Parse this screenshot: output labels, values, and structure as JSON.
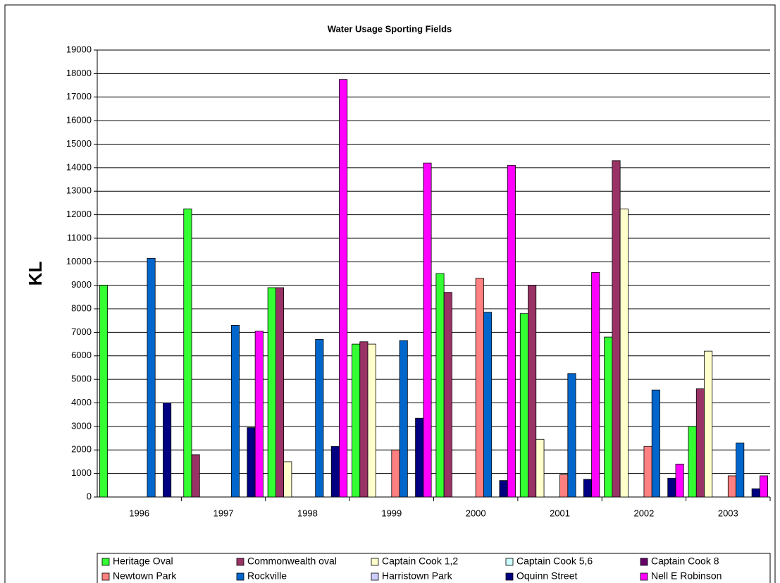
{
  "chart_data": {
    "type": "bar",
    "title": "Water Usage Sporting Fields",
    "y_label": "KL",
    "categories": [
      "1996",
      "1997",
      "1998",
      "1999",
      "2000",
      "2001",
      "2002",
      "2003"
    ],
    "series": [
      {
        "name": "Heritage Oval",
        "color": "#33ff33",
        "values": [
          9000,
          12250,
          8900,
          6500,
          9500,
          7800,
          6800,
          3000
        ]
      },
      {
        "name": "Commonwealth oval",
        "color": "#993366",
        "values": [
          0,
          1800,
          8900,
          6600,
          8700,
          9000,
          14300,
          4600
        ]
      },
      {
        "name": "Captain Cook 1,2",
        "color": "#ffffcc",
        "values": [
          0,
          0,
          1500,
          6500,
          0,
          2450,
          12250,
          6200
        ]
      },
      {
        "name": "Captain Cook 5,6",
        "color": "#ccffff",
        "values": [
          0,
          0,
          0,
          0,
          0,
          0,
          0,
          0
        ]
      },
      {
        "name": "Captain Cook 8",
        "color": "#660066",
        "values": [
          0,
          0,
          0,
          0,
          0,
          0,
          0,
          0
        ]
      },
      {
        "name": "Newtown Park",
        "color": "#ff8080",
        "values": [
          0,
          0,
          0,
          2000,
          9300,
          950,
          2150,
          900
        ]
      },
      {
        "name": "Rockville",
        "color": "#0066cc",
        "values": [
          10150,
          7300,
          6700,
          6650,
          7850,
          5250,
          4550,
          2300
        ]
      },
      {
        "name": "Harristown Park",
        "color": "#ccccff",
        "values": [
          0,
          0,
          0,
          0,
          0,
          0,
          0,
          0
        ]
      },
      {
        "name": "Oquinn Street",
        "color": "#000080",
        "values": [
          4000,
          2950,
          2150,
          3350,
          700,
          750,
          800,
          350
        ]
      },
      {
        "name": "Nell E Robinson",
        "color": "#ff00ff",
        "values": [
          0,
          7050,
          17750,
          14200,
          14100,
          9550,
          1400,
          900
        ]
      }
    ],
    "ylim": [
      0,
      19000
    ],
    "yticks": [
      0,
      1000,
      2000,
      3000,
      4000,
      5000,
      6000,
      7000,
      8000,
      9000,
      10000,
      11000,
      12000,
      13000,
      14000,
      15000,
      16000,
      17000,
      18000,
      19000
    ],
    "grid": true,
    "legend": "bottom"
  }
}
